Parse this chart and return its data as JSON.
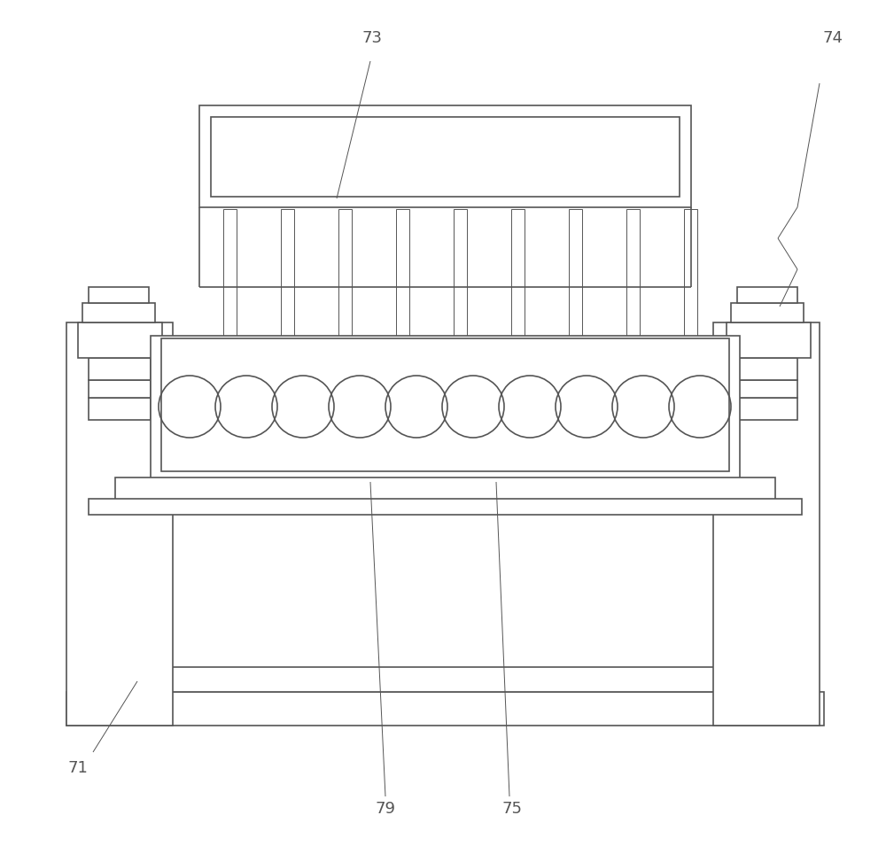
{
  "bg_color": "#ffffff",
  "line_color": "#555555",
  "lw": 1.2,
  "lw_thin": 0.7,
  "fig_width": 10.0,
  "fig_height": 9.64,
  "label_fontsize": 13
}
